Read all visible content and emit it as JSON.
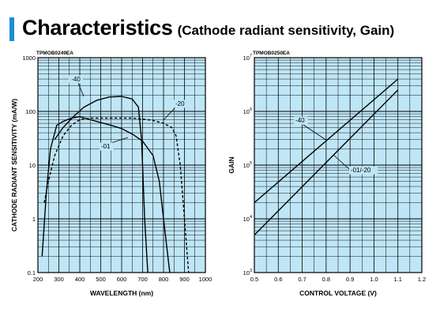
{
  "header": {
    "title": "Characteristics",
    "subtitle": "(Cathode radiant sensitivity, Gain)",
    "accent_color": "#1a8fd1"
  },
  "chart_data": [
    {
      "type": "line",
      "id_label": "TPMOB0249EA",
      "xlabel": "WAVELENGTH (nm)",
      "ylabel": "CATHODE RADIANT SENSITIVITY (mA/W)",
      "xlim": [
        200,
        1000
      ],
      "ylim": [
        0.1,
        1000
      ],
      "yscale": "log",
      "grid": true,
      "background": "#bfe6f7",
      "x_ticks": [
        "200",
        "300",
        "400",
        "500",
        "600",
        "700",
        "800",
        "900",
        "1000"
      ],
      "y_ticks": [
        "0.1",
        "1",
        "10",
        "100",
        "1000"
      ],
      "series": [
        {
          "name": "-40",
          "style": "solid",
          "x": [
            280,
            320,
            370,
            420,
            480,
            540,
            600,
            650,
            680,
            695,
            710,
            725
          ],
          "y": [
            30,
            50,
            80,
            120,
            160,
            185,
            190,
            170,
            120,
            30,
            1,
            0.1
          ]
        },
        {
          "name": "-01",
          "style": "solid",
          "x": [
            220,
            240,
            260,
            290,
            320,
            360,
            400,
            450,
            500,
            550,
            600,
            650,
            700,
            750,
            780,
            800,
            830
          ],
          "y": [
            0.2,
            3,
            20,
            55,
            65,
            75,
            80,
            70,
            62,
            55,
            48,
            38,
            28,
            15,
            5,
            1,
            0.1
          ]
        },
        {
          "name": "-20",
          "style": "dashed",
          "x": [
            230,
            250,
            280,
            320,
            360,
            400,
            450,
            500,
            550,
            600,
            650,
            700,
            750,
            800,
            840,
            860,
            880,
            900,
            920
          ],
          "y": [
            2,
            5,
            15,
            35,
            55,
            70,
            75,
            75,
            75,
            75,
            75,
            72,
            68,
            60,
            50,
            35,
            10,
            1,
            0.1
          ]
        }
      ]
    },
    {
      "type": "line",
      "id_label": "TPMOB0250EA",
      "xlabel": "CONTROL VOLTAGE (V)",
      "ylabel": "GAIN",
      "xlim": [
        0.5,
        1.2
      ],
      "ylim": [
        1000,
        10000000
      ],
      "yscale": "log",
      "grid": true,
      "background": "#bfe6f7",
      "x_ticks": [
        "0.5",
        "0.6",
        "0.7",
        "0.8",
        "0.9",
        "1.0",
        "1.1",
        "1.2"
      ],
      "y_ticks": [
        {
          "base": "10",
          "exp": "3"
        },
        {
          "base": "10",
          "exp": "4"
        },
        {
          "base": "10",
          "exp": "5"
        },
        {
          "base": "10",
          "exp": "6"
        },
        {
          "base": "10",
          "exp": "7"
        }
      ],
      "series": [
        {
          "name": "-40",
          "style": "solid",
          "x": [
            0.5,
            1.1
          ],
          "y": [
            20000,
            4000000
          ]
        },
        {
          "name": "-01/-20",
          "style": "solid",
          "x": [
            0.5,
            1.1
          ],
          "y": [
            5000,
            2500000
          ]
        }
      ]
    }
  ]
}
